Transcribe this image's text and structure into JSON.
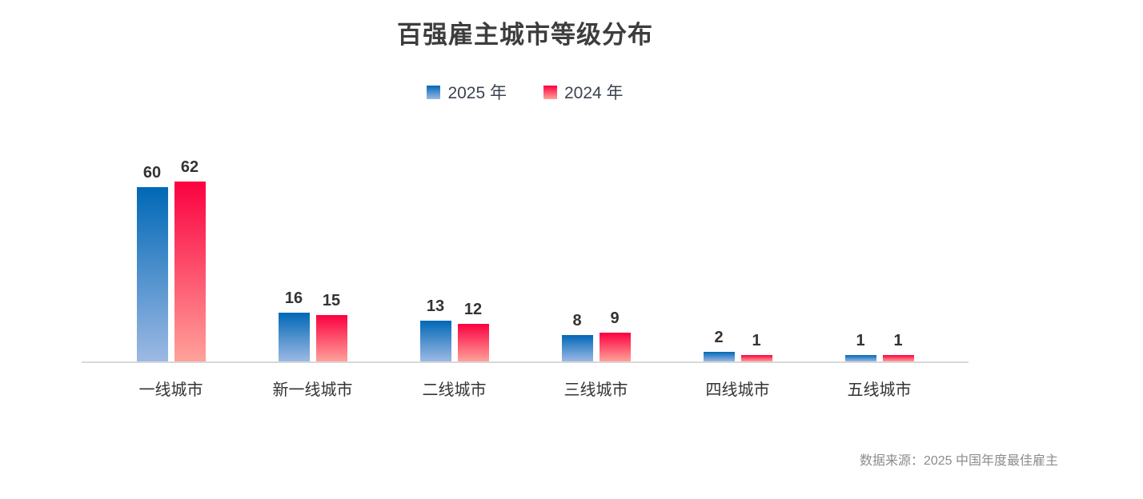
{
  "title": "百强雇主城市等级分布",
  "source_note": "数据来源：2025 中国年度最佳雇主",
  "colors": {
    "series_2025_top": "#0068b6",
    "series_2025_bottom": "#9db9e4",
    "series_2024_top": "#fb0140",
    "series_2024_bottom": "#ffa29a",
    "axis_line": "#d8d8d8",
    "title_text": "#3d3d3d",
    "label_text": "#333333",
    "source_text": "#8c8c8c"
  },
  "chart_data": {
    "type": "bar",
    "title": "百强雇主城市等级分布",
    "categories": [
      "一线城市",
      "新一线城市",
      "二线城市",
      "三线城市",
      "四线城市",
      "五线城市"
    ],
    "series": [
      {
        "name": "2025 年",
        "values": [
          60,
          16,
          13,
          8,
          2,
          1
        ],
        "color_top": "#0068b6",
        "color_bottom": "#9db9e4"
      },
      {
        "name": "2024 年",
        "values": [
          62,
          15,
          12,
          9,
          1,
          1
        ],
        "color_top": "#fb0140",
        "color_bottom": "#ffa29a"
      }
    ],
    "xlabel": "",
    "ylabel": "",
    "ylim": [
      0,
      70
    ],
    "grid": false,
    "value_labels_shown": true,
    "legend_position": "top",
    "source_note": "数据来源：2025 中国年度最佳雇主"
  }
}
